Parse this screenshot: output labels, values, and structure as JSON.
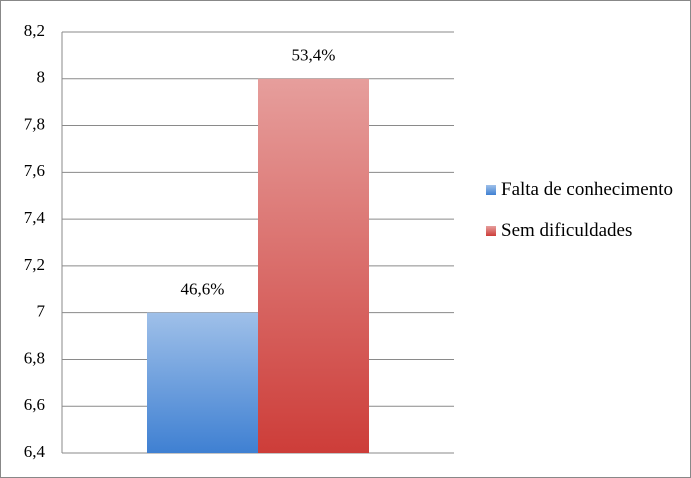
{
  "chart_data": {
    "type": "bar",
    "categories": [
      null
    ],
    "series": [
      {
        "name": "Falta de conhecimento",
        "color": "#3f80d2",
        "values": [
          7
        ]
      },
      {
        "name": "Sem dificuldades",
        "color": "#cd3d39",
        "values": [
          8
        ]
      }
    ],
    "annotations": [
      "46,6%",
      "53,4%"
    ],
    "ylim": [
      6.4,
      8.2
    ],
    "yticks": [
      {
        "value": 6.4,
        "label": "6,4"
      },
      {
        "value": 6.6,
        "label": "6,6"
      },
      {
        "value": 6.8,
        "label": "6,8"
      },
      7,
      {
        "value": 7.2,
        "label": "7,2"
      },
      {
        "value": 7.4,
        "label": "7,4"
      },
      {
        "value": 7.6,
        "label": "7,6"
      },
      {
        "value": 7.8,
        "label": "7,8"
      },
      8,
      {
        "value": 8.2,
        "label": "8,2"
      }
    ],
    "grid": true,
    "legend": "right"
  }
}
